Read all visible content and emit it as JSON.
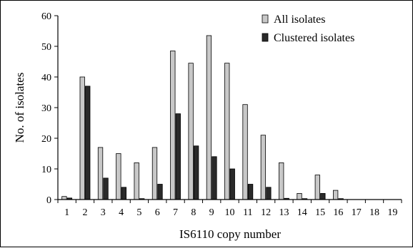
{
  "chart_data": {
    "type": "bar",
    "xlabel": "IS6110 copy number",
    "ylabel": "No. of isolates",
    "ylim": [
      0,
      60
    ],
    "yticks": [
      "0",
      "10",
      "20",
      "30",
      "40",
      "50",
      "60"
    ],
    "categories": [
      "1",
      "2",
      "3",
      "4",
      "5",
      "6",
      "7",
      "8",
      "9",
      "10",
      "11",
      "12",
      "13",
      "14",
      "15",
      "16",
      "17",
      "18",
      "19"
    ],
    "series": [
      {
        "name": "All isolates",
        "color": "#c8c8c8",
        "values": [
          1,
          40,
          17,
          15,
          12,
          17,
          48.5,
          44.5,
          53.5,
          44.5,
          31,
          21,
          12,
          2,
          8,
          3,
          0,
          0,
          0
        ]
      },
      {
        "name": "Clustered isolates",
        "color": "#2a2a2a",
        "values": [
          0.5,
          37,
          7,
          4,
          0.3,
          5,
          28,
          17.5,
          14,
          10,
          5,
          4,
          0.4,
          0.3,
          2,
          0.3,
          0,
          0,
          0
        ]
      }
    ],
    "grid": false,
    "legend_position": "top-right"
  }
}
